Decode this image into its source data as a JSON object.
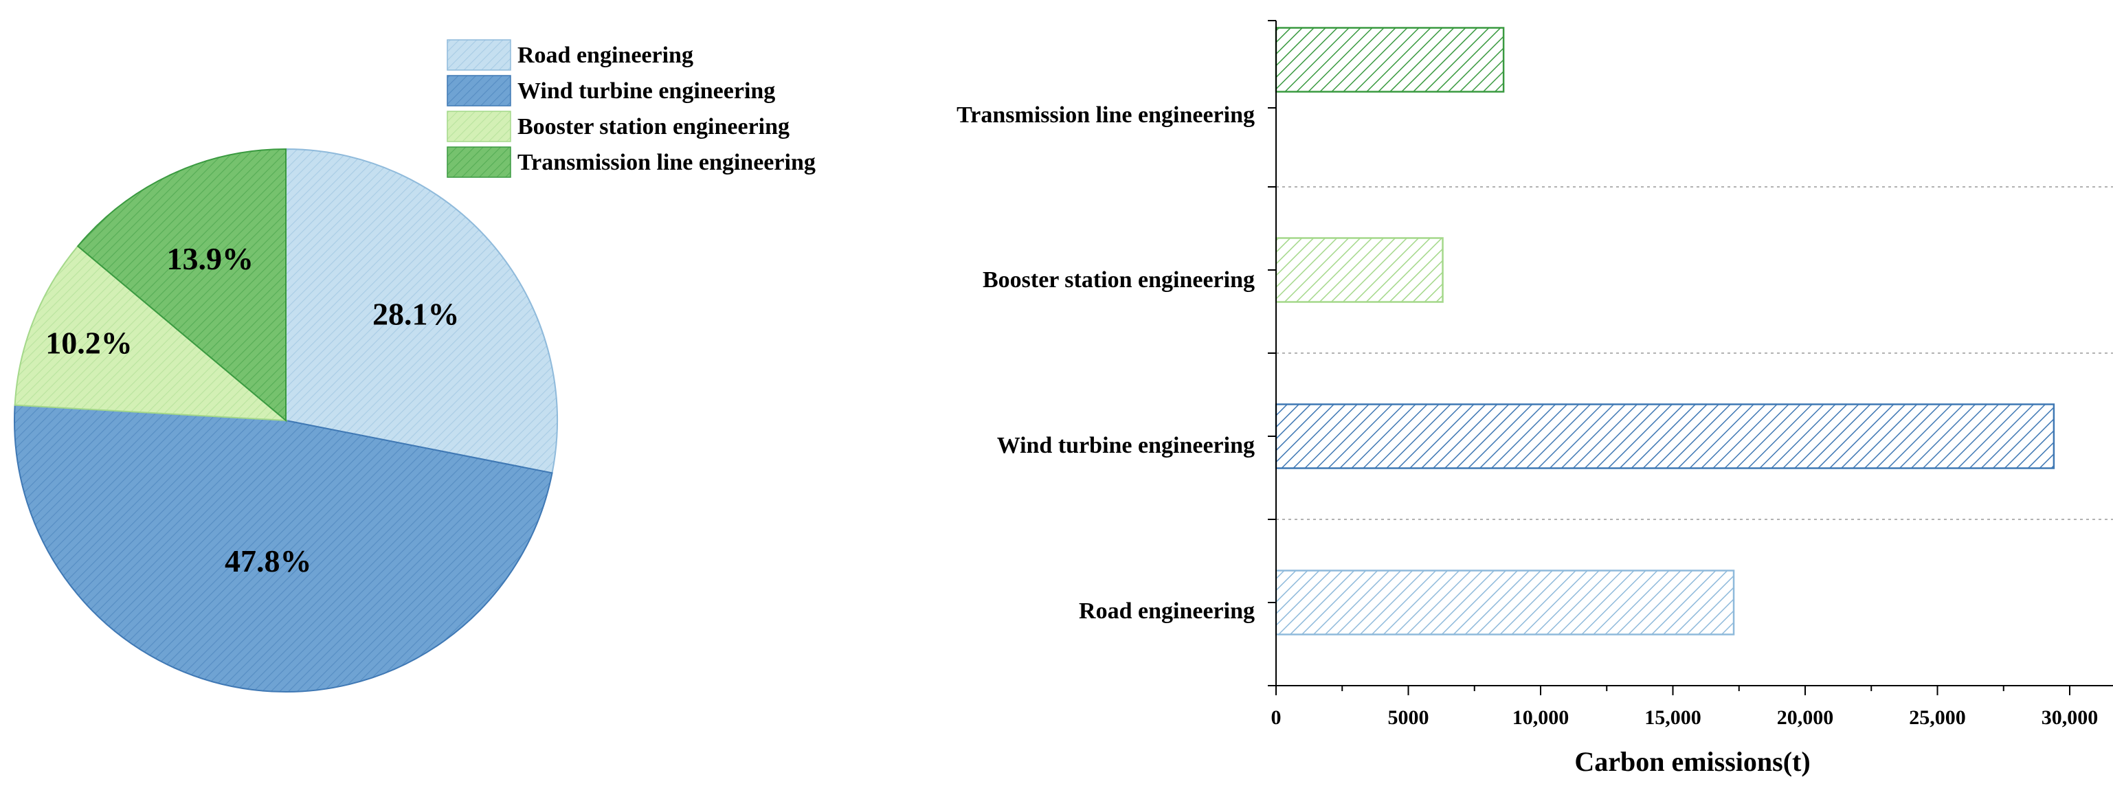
{
  "colors": {
    "road": "#c5dff0",
    "road_stroke": "#8fbadb",
    "wind": "#6fa3d3",
    "wind_stroke": "#3f78b4",
    "booster": "#d3f0b5",
    "booster_stroke": "#a4d88a",
    "transmission": "#76c26e",
    "transmission_stroke": "#3a9a40"
  },
  "chart_data": [
    {
      "type": "pie",
      "slices": [
        {
          "name": "Road engineering",
          "value": 28.1,
          "label": "28.1%",
          "color_key": "road"
        },
        {
          "name": "Wind turbine engineering",
          "value": 47.8,
          "label": "47.8%",
          "color_key": "wind"
        },
        {
          "name": "Booster station engineering",
          "value": 10.2,
          "label": "10.2%",
          "color_key": "booster"
        },
        {
          "name": "Transmission line engineering",
          "value": 13.9,
          "label": "13.9%",
          "color_key": "transmission"
        }
      ],
      "start_angle_deg": 0,
      "direction": "clockwise",
      "legend_placement": "top-right",
      "fill_pattern": "diagonal hatch"
    },
    {
      "type": "bar",
      "orientation": "horizontal",
      "categories": [
        "Road engineering",
        "Wind turbine engineering",
        "Booster station engineering",
        "Transmission line engineering"
      ],
      "values": [
        17300,
        29400,
        6300,
        8600
      ],
      "color_keys": [
        "road",
        "wind",
        "booster",
        "transmission"
      ],
      "xlabel": "Carbon emissions(t)",
      "ylabel": "",
      "xlim": [
        0,
        32000
      ],
      "xticks": [
        0,
        5000,
        10000,
        15000,
        20000,
        25000,
        30000
      ],
      "xtick_labels": [
        "0",
        "5000",
        "10,000",
        "15,000",
        "20,000",
        "25,000",
        "30,000"
      ],
      "grid": "dashed horizontal separators",
      "fill_pattern": "diagonal hatch"
    }
  ]
}
